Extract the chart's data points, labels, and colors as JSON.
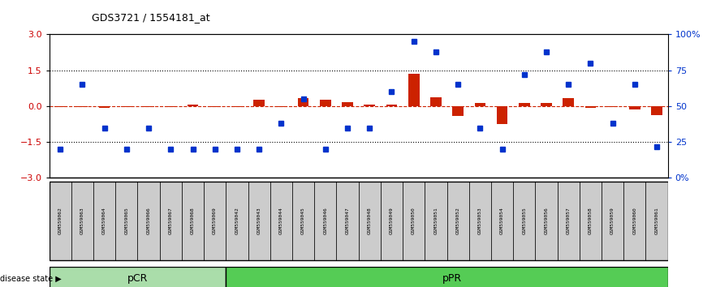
{
  "title": "GDS3721 / 1554181_at",
  "samples": [
    "GSM559062",
    "GSM559063",
    "GSM559064",
    "GSM559065",
    "GSM559066",
    "GSM559067",
    "GSM559068",
    "GSM559069",
    "GSM559042",
    "GSM559043",
    "GSM559044",
    "GSM559045",
    "GSM559046",
    "GSM559047",
    "GSM559048",
    "GSM559049",
    "GSM559050",
    "GSM559051",
    "GSM559052",
    "GSM559053",
    "GSM559054",
    "GSM559055",
    "GSM559056",
    "GSM559057",
    "GSM559058",
    "GSM559059",
    "GSM559060",
    "GSM559061"
  ],
  "transformed_count": [
    -0.03,
    -0.05,
    -0.08,
    -0.03,
    -0.02,
    -0.04,
    0.08,
    -0.02,
    -0.05,
    0.28,
    -0.05,
    0.35,
    0.28,
    0.18,
    0.08,
    0.08,
    1.35,
    0.38,
    -0.42,
    0.12,
    -0.75,
    0.12,
    0.12,
    0.35,
    -0.08,
    -0.05,
    -0.12,
    -0.38
  ],
  "percentile_rank": [
    20,
    65,
    35,
    20,
    35,
    20,
    20,
    20,
    20,
    20,
    38,
    55,
    20,
    35,
    35,
    60,
    95,
    88,
    65,
    35,
    20,
    72,
    88,
    65,
    80,
    38,
    65,
    22
  ],
  "pcr_count": 8,
  "ppr_count": 20,
  "ylim": [
    -3,
    3
  ],
  "yticks_left": [
    -3,
    -1.5,
    0,
    1.5,
    3
  ],
  "yticks_right": [
    0,
    25,
    50,
    75,
    100
  ],
  "hline_dotted": [
    -1.5,
    1.5
  ],
  "bar_color": "#CC2200",
  "dot_color": "#0033CC",
  "pcr_color": "#AADDAA",
  "ppr_color": "#55CC55",
  "label_bg_color": "#CCCCCC"
}
